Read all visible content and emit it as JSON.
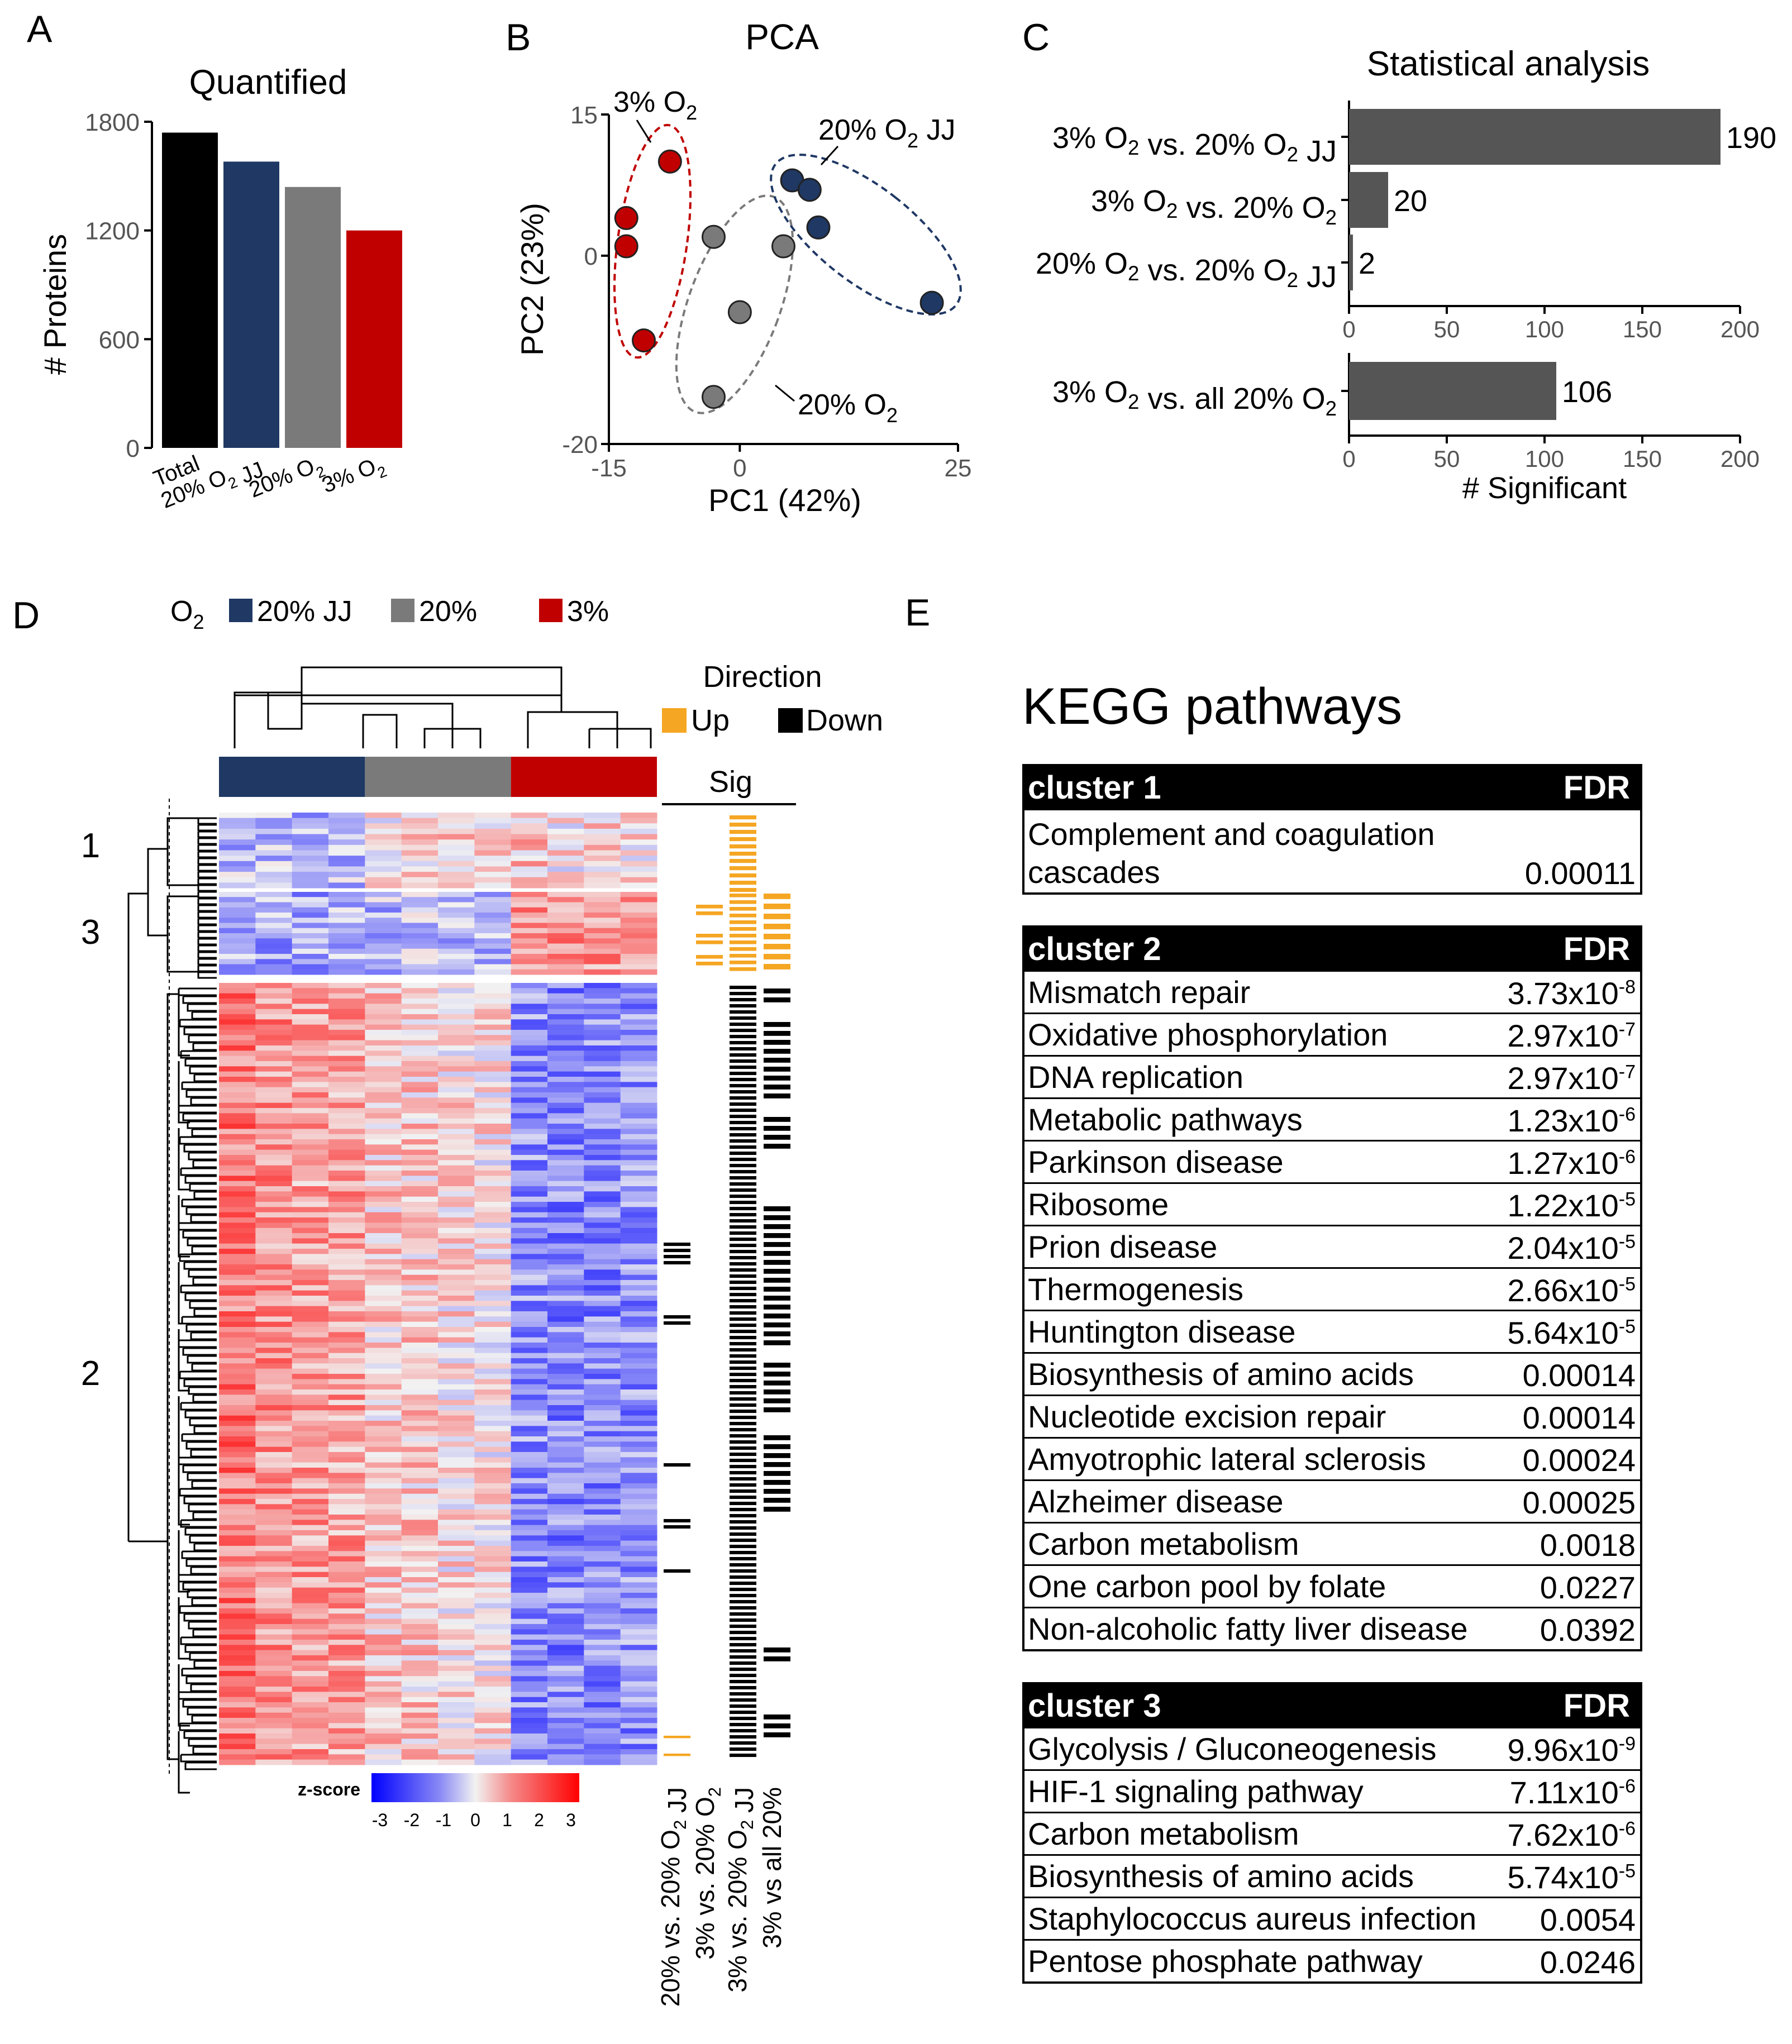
{
  "panels": {
    "a": "A",
    "b": "B",
    "c": "C",
    "d": "D",
    "e": "E"
  },
  "chart_data": [
    {
      "id": "A",
      "type": "bar",
      "title": "Quantified",
      "ylabel": "# Proteins",
      "ylim": [
        0,
        1800
      ],
      "yticks": [
        0,
        600,
        1200,
        1800
      ],
      "categories": [
        "Total",
        "20% O2 JJ",
        "20% O2",
        "3% O2"
      ],
      "values": [
        1740,
        1580,
        1440,
        1200
      ],
      "colors": [
        "#000000",
        "#1f3864",
        "#7a7a7a",
        "#c00000"
      ]
    },
    {
      "id": "B",
      "type": "scatter",
      "title": "PCA",
      "xlabel": "PC1 (42%)",
      "ylabel": "PC2 (23%)",
      "xlim": [
        -15,
        25
      ],
      "ylim": [
        -20,
        15
      ],
      "xticks": [
        -15,
        0,
        25
      ],
      "yticks": [
        15,
        0,
        -20
      ],
      "series": [
        {
          "name": "3% O2",
          "color": "#c00000",
          "x": [
            -8,
            -13,
            -13,
            -11
          ],
          "y": [
            10,
            4,
            1,
            -9
          ]
        },
        {
          "name": "20% O2",
          "color": "#7a7a7a",
          "x": [
            -3,
            5,
            0,
            -3
          ],
          "y": [
            2,
            1,
            -6,
            -15
          ]
        },
        {
          "name": "20% O2 JJ",
          "color": "#1f3864",
          "x": [
            6,
            8,
            9,
            22
          ],
          "y": [
            8,
            7,
            3,
            -5
          ]
        }
      ]
    },
    {
      "id": "C1",
      "type": "bar",
      "orientation": "horizontal",
      "title": "Statistical analysis",
      "xlim": [
        0,
        200
      ],
      "xticks": [
        0,
        50,
        100,
        150,
        200
      ],
      "categories": [
        "3% O2 vs. 20% O2 JJ",
        "3% O2 vs. 20% O2",
        "20% O2 vs. 20% O2 JJ"
      ],
      "values": [
        190,
        20,
        2
      ]
    },
    {
      "id": "C2",
      "type": "bar",
      "orientation": "horizontal",
      "xlabel": "# Significant",
      "xlim": [
        0,
        200
      ],
      "xticks": [
        0,
        50,
        100,
        150,
        200
      ],
      "categories": [
        "3% O2 vs. all 20% O2"
      ],
      "values": [
        106
      ]
    },
    {
      "id": "D",
      "type": "heatmap",
      "group_label": "O",
      "group_label_sub": "2",
      "groups": [
        {
          "name": "20% JJ",
          "color": "#1f3864"
        },
        {
          "name": "20%",
          "color": "#7a7a7a"
        },
        {
          "name": "3%",
          "color": "#c00000"
        }
      ],
      "direction_title": "Direction",
      "direction_up": "Up",
      "direction_down": "Down",
      "up_color": "#f5a623",
      "down_color": "#000000",
      "sig_title": "Sig",
      "cluster_labels": [
        "1",
        "3",
        "2"
      ],
      "zscore_label": "z-score",
      "zscore_ticks": [
        "-3",
        "-2",
        "-1",
        "0",
        "1",
        "2",
        "3"
      ],
      "sig_columns": [
        "20% vs. 20% O2 JJ",
        "3% vs. 20% O2",
        "3% vs. 20% O2 JJ",
        "3% vs all 20%"
      ]
    }
  ],
  "pca_labels": {
    "g3": "3% O",
    "g20jj": "20% O",
    "g20jj_tail": " JJ",
    "g20": "20% O",
    "sub": "2"
  },
  "kegg": {
    "title": "KEGG pathways",
    "clusters": [
      {
        "name": "cluster 1",
        "fdr_header": "FDR",
        "rows": [
          {
            "term": "Complement and coagulation cascades",
            "fdr": "0.00011"
          }
        ]
      },
      {
        "name": "cluster 2",
        "fdr_header": "FDR",
        "rows": [
          {
            "term": "Mismatch repair",
            "base": "3.73x10",
            "exp": "-8"
          },
          {
            "term": "Oxidative phosphorylation",
            "base": "2.97x10",
            "exp": "-7"
          },
          {
            "term": "DNA replication",
            "base": "2.97x10",
            "exp": "-7"
          },
          {
            "term": "Metabolic pathways",
            "base": "1.23x10",
            "exp": "-6"
          },
          {
            "term": "Parkinson disease",
            "base": "1.27x10",
            "exp": "-6"
          },
          {
            "term": "Ribosome",
            "base": "1.22x10",
            "exp": "-5"
          },
          {
            "term": "Prion disease",
            "base": "2.04x10",
            "exp": "-5"
          },
          {
            "term": "Thermogenesis",
            "base": "2.66x10",
            "exp": "-5"
          },
          {
            "term": "Huntington disease",
            "base": "5.64x10",
            "exp": "-5"
          },
          {
            "term": "Biosynthesis of amino acids",
            "fdr": "0.00014"
          },
          {
            "term": "Nucleotide excision repair",
            "fdr": "0.00014"
          },
          {
            "term": "Amyotrophic lateral sclerosis",
            "fdr": "0.00024"
          },
          {
            "term": "Alzheimer disease",
            "fdr": "0.00025"
          },
          {
            "term": "Carbon metabolism",
            "fdr": "0.0018"
          },
          {
            "term": "One carbon pool by folate",
            "fdr": "0.0227"
          },
          {
            "term": "Non-alcoholic fatty liver disease",
            "fdr": "0.0392"
          }
        ]
      },
      {
        "name": "cluster 3",
        "fdr_header": "FDR",
        "rows": [
          {
            "term": "Glycolysis / Gluconeogenesis",
            "base": "9.96x10",
            "exp": "-9"
          },
          {
            "term": "HIF-1 signaling pathway",
            "base": "7.11x10",
            "exp": "-6"
          },
          {
            "term": "Carbon metabolism",
            "base": "7.62x10",
            "exp": "-6"
          },
          {
            "term": "Biosynthesis of amino acids",
            "base": "5.74x10",
            "exp": "-5"
          },
          {
            "term": "Staphylococcus aureus infection",
            "fdr": "0.0054"
          },
          {
            "term": "Pentose phosphate pathway",
            "fdr": "0.0246"
          }
        ]
      }
    ]
  }
}
